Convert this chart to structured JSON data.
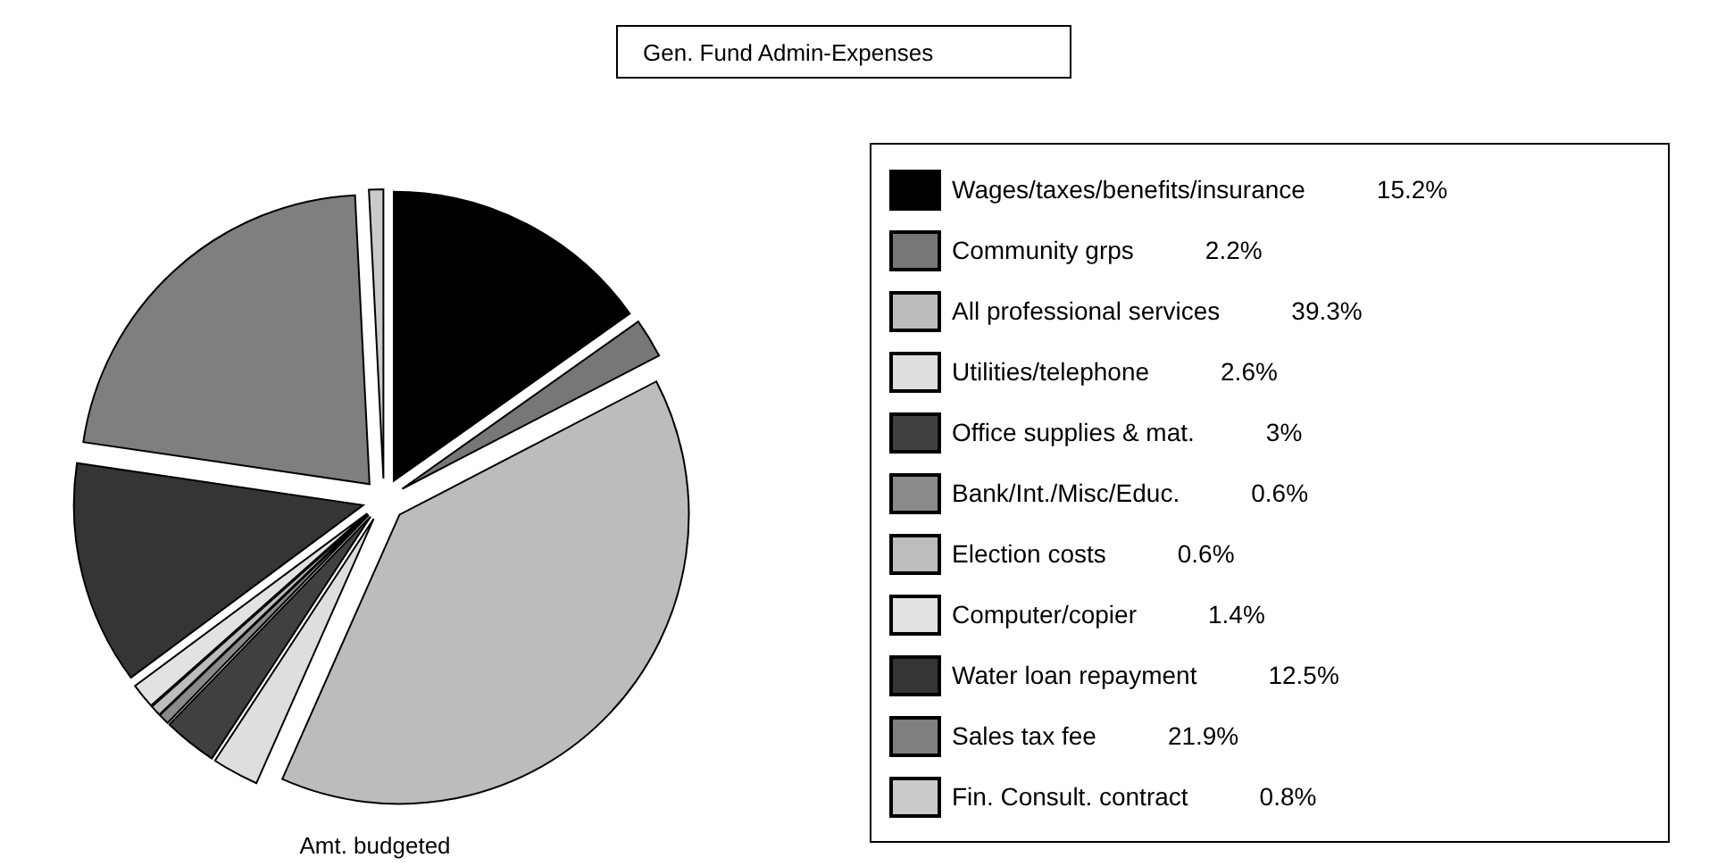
{
  "chart_data": {
    "type": "pie",
    "title": "Gen. Fund Admin-Expenses",
    "xlabel": "Amt. budgeted",
    "categories": [
      "Wages/taxes/benefits/insurance",
      "Community grps",
      "All professional services",
      "Utilities/telephone",
      "Office supplies & mat.",
      "Bank/Int./Misc/Educ.",
      "Election costs",
      "Computer/copier",
      "Water loan repayment",
      "Sales tax fee",
      "Fin. Consult. contract"
    ],
    "values": [
      15.2,
      2.2,
      39.3,
      2.6,
      3,
      0.6,
      0.6,
      1.4,
      12.5,
      21.9,
      0.8
    ],
    "value_labels": [
      "15.2%",
      "2.2%",
      "39.3%",
      "2.6%",
      "3%",
      "0.6%",
      "0.6%",
      "1.4%",
      "12.5%",
      "21.9%",
      "0.8%"
    ],
    "colors": [
      "#000000",
      "#777777",
      "#bcbcbc",
      "#dedede",
      "#404040",
      "#8a8a8a",
      "#bdbdbd",
      "#e2e2e2",
      "#353535",
      "#7f7f7f",
      "#cacaca"
    ],
    "legend": "right"
  }
}
